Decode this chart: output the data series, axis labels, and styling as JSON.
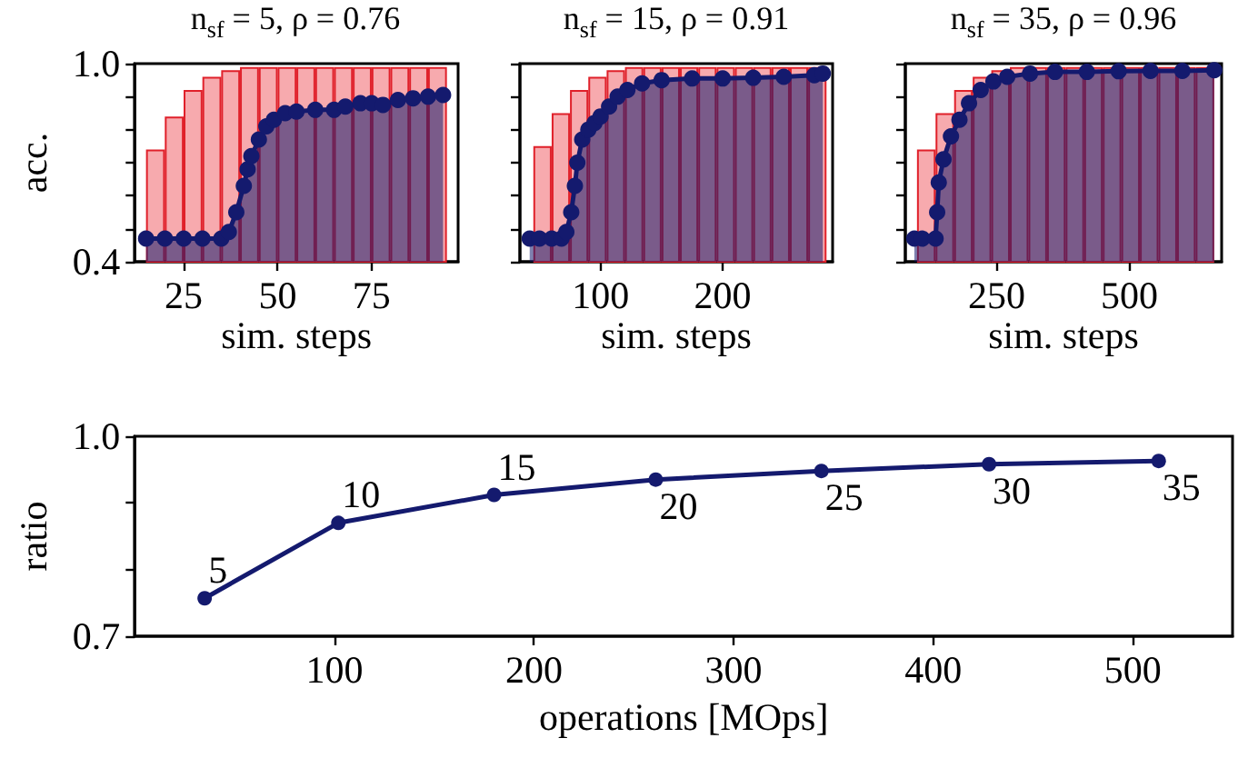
{
  "chart_data": [
    {
      "type": "bar",
      "title": "n$_{sf}$ = 5, ρ = 0.76",
      "xlabel": "sim. steps",
      "ylabel": "acc.",
      "xlim": [
        12,
        98
      ],
      "xticks": [
        25,
        50,
        75
      ],
      "ylim": [
        0.4,
        1.0
      ],
      "yticks": [
        0.4,
        {
          "value": 0.5,
          "label": null
        },
        {
          "value": 0.6,
          "label": null
        },
        {
          "value": 0.7,
          "label": null
        },
        {
          "value": 0.8,
          "label": null
        },
        {
          "value": 0.9,
          "label": null
        },
        {
          "value": 1,
          "label": "1.0"
        }
      ],
      "grid": false,
      "marker": "circle",
      "series": [
        {
          "color": "#f7aaae",
          "x": [
            17.5,
            22.5,
            27.5,
            32.5,
            37.5,
            42.5,
            47.5,
            52.5,
            57.5,
            62.5,
            67.5,
            72.5,
            77.5,
            82.5,
            87.5,
            92.5
          ],
          "values": [
            0.74,
            0.84,
            0.92,
            0.96,
            0.98,
            0.99,
            0.99,
            0.99,
            0.99,
            0.99,
            0.99,
            0.99,
            0.99,
            0.99,
            0.99,
            0.99
          ]
        },
        {
          "type": "area",
          "color": "#141a6e",
          "x": [
            15,
            20,
            25,
            30,
            35,
            37,
            39,
            41,
            42,
            43,
            45,
            47,
            49,
            52,
            55,
            60,
            65,
            68,
            72,
            75,
            78,
            82,
            86,
            90,
            94
          ],
          "values": [
            0.47,
            0.47,
            0.47,
            0.47,
            0.47,
            0.49,
            0.55,
            0.63,
            0.68,
            0.72,
            0.77,
            0.81,
            0.83,
            0.85,
            0.855,
            0.86,
            0.86,
            0.87,
            0.88,
            0.88,
            0.875,
            0.89,
            0.895,
            0.9,
            0.905
          ]
        }
      ]
    },
    {
      "type": "bar",
      "title": "n$_{sf}$ = 15, ρ = 0.91",
      "xlabel": "sim. steps",
      "xlim": [
        34,
        290
      ],
      "xticks": [
        100,
        200
      ],
      "ylim": [
        0.4,
        1.0
      ],
      "yticks": [
        0.4,
        0.5,
        0.6,
        0.7,
        0.8,
        0.9,
        1
      ],
      "tick_labels": "x",
      "grid": false,
      "marker": "circle",
      "series": [
        {
          "color": "#f7aaae",
          "x": [
            52.5,
            67.5,
            82.5,
            97.5,
            112.5,
            127.5,
            142.5,
            157.5,
            172.5,
            187.5,
            202.5,
            217.5,
            232.5,
            247.5,
            262.5,
            277.5
          ],
          "values": [
            0.75,
            0.85,
            0.92,
            0.96,
            0.98,
            0.99,
            0.99,
            0.99,
            0.99,
            0.99,
            0.99,
            0.99,
            0.99,
            0.99,
            0.99,
            0.99
          ]
        },
        {
          "type": "area",
          "color": "#141a6e",
          "x": [
            42,
            50,
            60,
            68,
            72,
            76,
            79,
            81,
            85,
            90,
            95,
            100,
            107,
            114,
            122,
            134,
            150,
            175,
            200,
            225,
            250,
            275,
            282
          ],
          "values": [
            0.47,
            0.47,
            0.47,
            0.47,
            0.49,
            0.55,
            0.63,
            0.7,
            0.77,
            0.8,
            0.82,
            0.84,
            0.87,
            0.9,
            0.92,
            0.94,
            0.95,
            0.955,
            0.955,
            0.957,
            0.96,
            0.965,
            0.97
          ]
        }
      ]
    },
    {
      "type": "bar",
      "title": "n$_{sf}$ = 35, ρ = 0.96",
      "xlabel": "sim. steps",
      "xlim": [
        78,
        674
      ],
      "xticks": [
        250,
        500
      ],
      "ylim": [
        0.4,
        1.0
      ],
      "yticks": [
        0.4,
        0.5,
        0.6,
        0.7,
        0.8,
        0.9,
        1
      ],
      "tick_labels": "x",
      "grid": false,
      "marker": "circle",
      "series": [
        {
          "color": "#f7aaae",
          "x": [
            117.5,
            152.5,
            187.5,
            222.5,
            257.5,
            292.5,
            327.5,
            362.5,
            397.5,
            432.5,
            467.5,
            502.5,
            537.5,
            572.5,
            607.5,
            642.5
          ],
          "values": [
            0.74,
            0.85,
            0.92,
            0.96,
            0.98,
            0.99,
            0.99,
            0.99,
            0.99,
            0.99,
            0.99,
            0.99,
            0.99,
            0.99,
            0.99,
            0.99
          ]
        },
        {
          "type": "area",
          "color": "#141a6e",
          "x": [
            95,
            110,
            135,
            138,
            141,
            150,
            164,
            180,
            198,
            220,
            244,
            270,
            313,
            360,
            420,
            480,
            540,
            600,
            660
          ],
          "values": [
            0.47,
            0.47,
            0.47,
            0.55,
            0.64,
            0.71,
            0.78,
            0.83,
            0.88,
            0.92,
            0.946,
            0.96,
            0.97,
            0.975,
            0.975,
            0.977,
            0.978,
            0.978,
            0.98
          ]
        }
      ]
    },
    {
      "type": "line",
      "xlabel": "operations [MOps]",
      "ylabel": "ratio",
      "xlim": [
        0,
        550
      ],
      "xticks": [
        100,
        200,
        300,
        400,
        500
      ],
      "ylim": [
        0.7,
        1.0
      ],
      "yticks": [
        0.7,
        {
          "value": 0.8,
          "label": null
        },
        {
          "value": 0.9,
          "label": null
        },
        {
          "value": 1,
          "label": "1.0"
        }
      ],
      "grid": false,
      "marker": "circle",
      "series": [
        {
          "color": "#141a6e",
          "x": [
            35,
            102,
            180,
            261,
            344,
            428,
            513
          ],
          "values": [
            0.757,
            0.87,
            0.912,
            0.935,
            0.948,
            0.958,
            0.963
          ]
        }
      ],
      "annotations": [
        {
          "text": "5",
          "x": 35,
          "y": 0.757
        },
        {
          "text": "10",
          "x": 102,
          "y": 0.87
        },
        {
          "text": "15",
          "x": 180,
          "y": 0.912
        },
        {
          "text": "20",
          "x": 261,
          "y": 0.935
        },
        {
          "text": "25",
          "x": 344,
          "y": 0.948
        },
        {
          "text": "30",
          "x": 428,
          "y": 0.958
        },
        {
          "text": "35",
          "x": 513,
          "y": 0.963
        }
      ]
    }
  ]
}
